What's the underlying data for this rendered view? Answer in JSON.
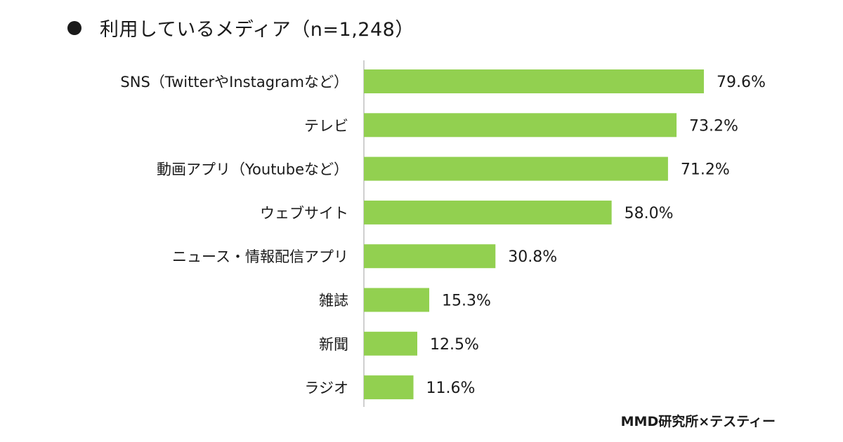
{
  "title": "利用しているメディア（n=1,248）",
  "source": "MMD研究所×テスティー",
  "chart_data": {
    "type": "bar",
    "orientation": "horizontal",
    "categories": [
      "SNS（TwitterやInstagramなど）",
      "テレビ",
      "動画アプリ（Youtubeなど）",
      "ウェブサイト",
      "ニュース・情報配信アプリ",
      "雑誌",
      "新聞",
      "ラジオ"
    ],
    "values": [
      79.6,
      73.2,
      71.2,
      58.0,
      30.8,
      15.3,
      12.5,
      11.6
    ],
    "value_labels": [
      "79.6%",
      "73.2%",
      "71.2%",
      "58.0%",
      "30.8%",
      "15.3%",
      "12.5%",
      "11.6%"
    ],
    "title": "利用しているメディア（n=1,248）",
    "xlabel": "",
    "ylabel": "",
    "xlim": [
      0,
      100
    ],
    "grid": false,
    "bar_color": "#92d050"
  }
}
